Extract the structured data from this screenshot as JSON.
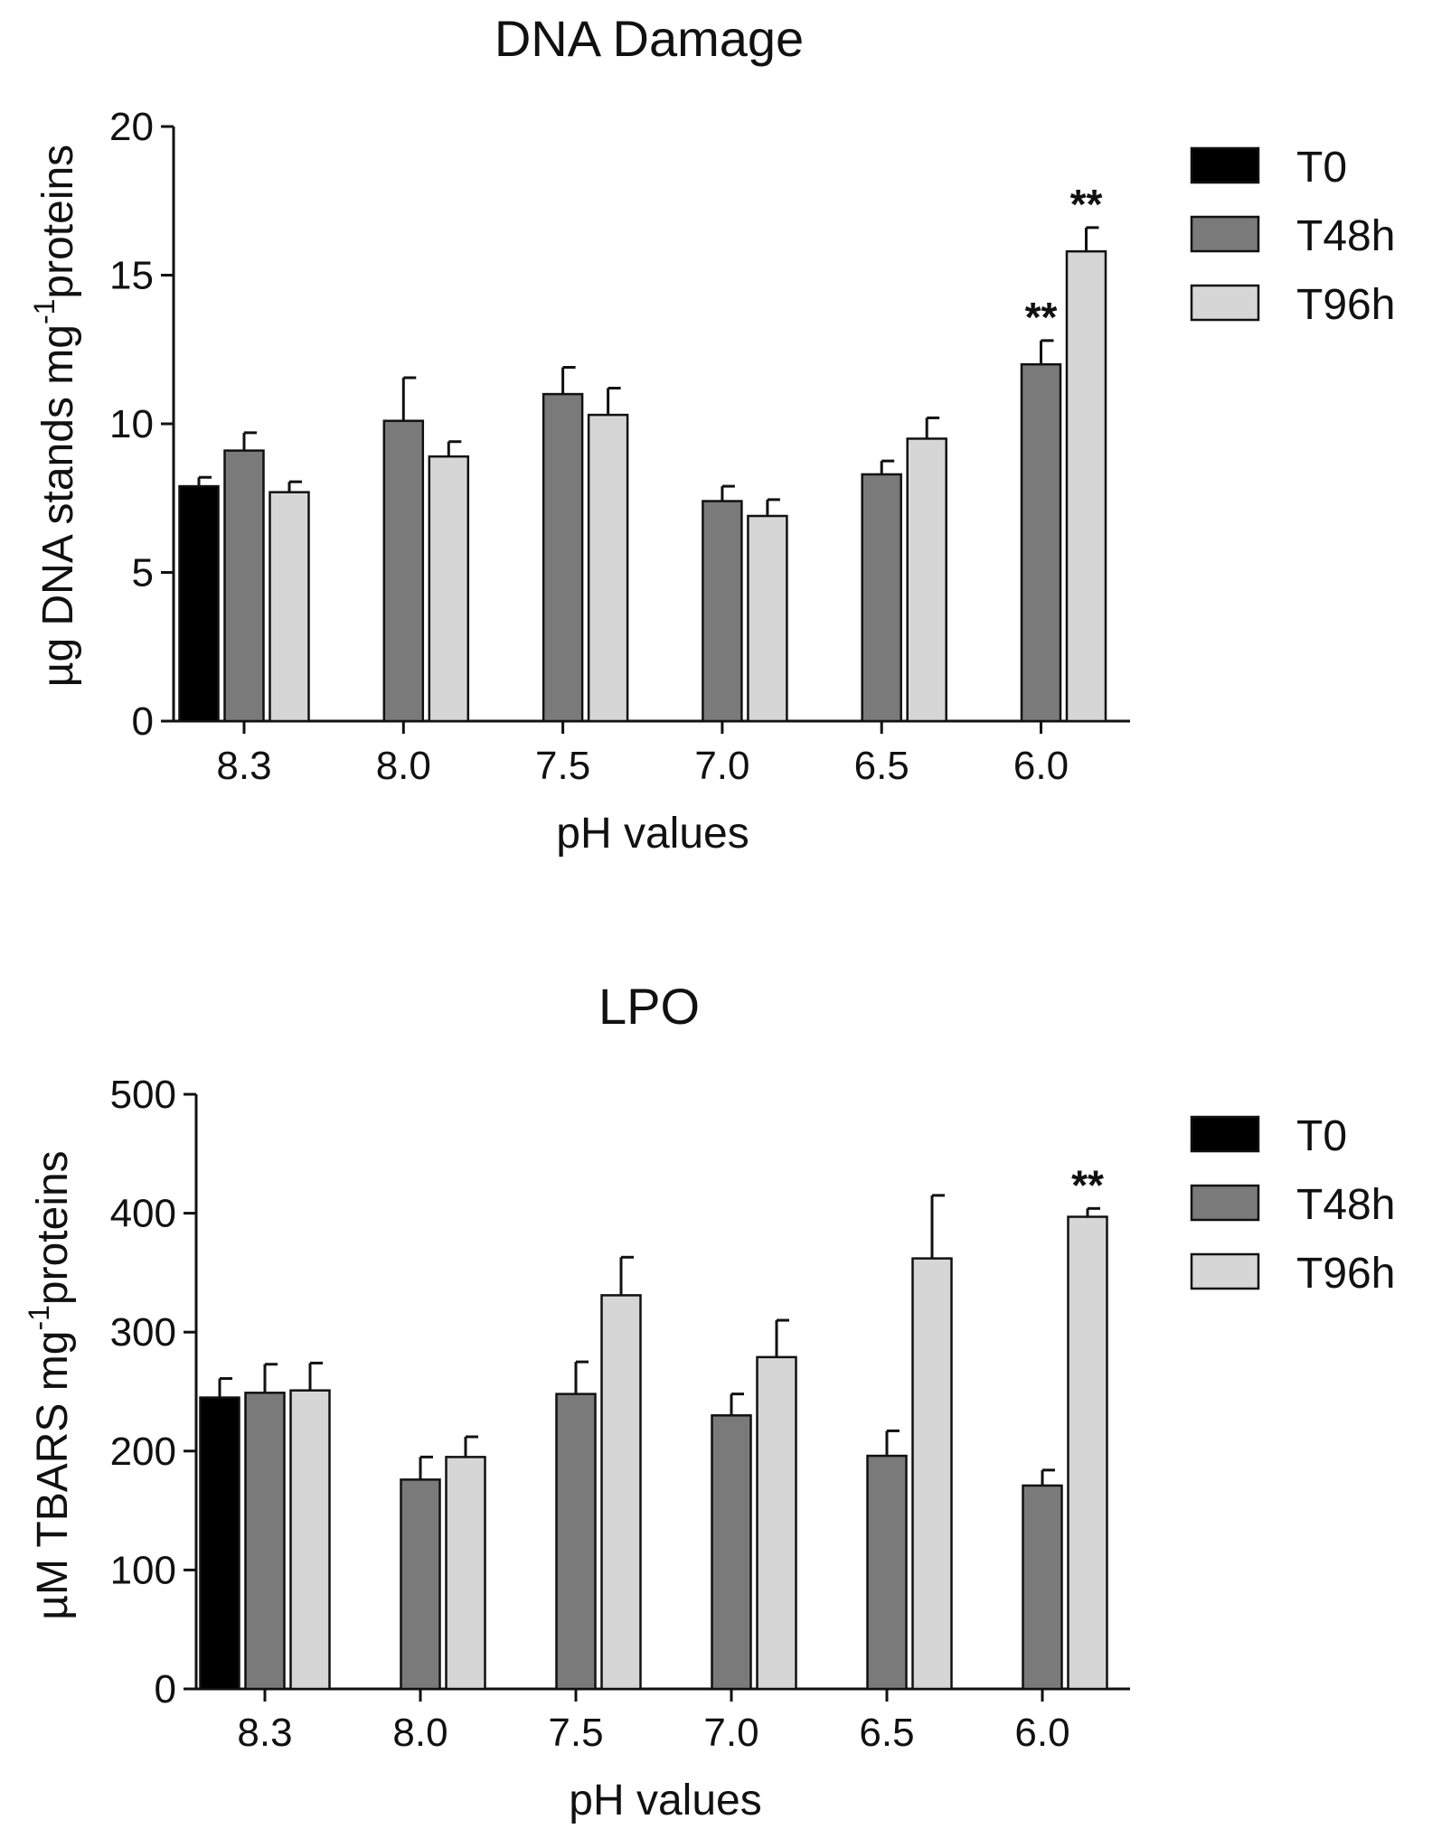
{
  "colors": {
    "T0": "#000000",
    "T48h": "#7a7a7a",
    "T96h": "#d6d6d6",
    "axis": "#111111"
  },
  "chart_data": [
    {
      "type": "bar",
      "title": "DNA Damage",
      "xlabel": "pH values",
      "ylabel": "µg DNA stands mg",
      "ylabel_sup": "-1",
      "ylabel_tail": "proteins",
      "categories": [
        "8.3",
        "8.0",
        "7.5",
        "7.0",
        "6.5",
        "6.0"
      ],
      "ylim": [
        0,
        20
      ],
      "yticks": [
        0,
        5,
        10,
        15,
        20
      ],
      "legend_position": "top-right",
      "series": [
        {
          "name": "T0",
          "values": [
            7.9,
            null,
            null,
            null,
            null,
            null
          ],
          "errors": [
            0.3,
            null,
            null,
            null,
            null,
            null
          ]
        },
        {
          "name": "T48h",
          "values": [
            9.1,
            10.1,
            11.0,
            7.4,
            8.3,
            12.0
          ],
          "errors": [
            0.6,
            1.45,
            0.9,
            0.5,
            0.45,
            0.8
          ]
        },
        {
          "name": "T96h",
          "values": [
            7.7,
            8.9,
            10.3,
            6.9,
            9.5,
            15.8
          ],
          "errors": [
            0.35,
            0.5,
            0.9,
            0.55,
            0.7,
            0.8
          ]
        }
      ],
      "annotations": [
        {
          "text": "**",
          "category": "6.0",
          "series": "T48h"
        },
        {
          "text": "**",
          "category": "6.0",
          "series": "T96h"
        }
      ]
    },
    {
      "type": "bar",
      "title": "LPO",
      "xlabel": "pH values",
      "ylabel": "µM TBARS mg",
      "ylabel_sup": "-1",
      "ylabel_tail": "proteins",
      "categories": [
        "8.3",
        "8.0",
        "7.5",
        "7.0",
        "6.5",
        "6.0"
      ],
      "ylim": [
        0,
        500
      ],
      "yticks": [
        0,
        100,
        200,
        300,
        400,
        500
      ],
      "legend_position": "top-right",
      "series": [
        {
          "name": "T0",
          "values": [
            245,
            null,
            null,
            null,
            null,
            null
          ],
          "errors": [
            16,
            null,
            null,
            null,
            null,
            null
          ]
        },
        {
          "name": "T48h",
          "values": [
            249,
            176,
            248,
            230,
            196,
            171
          ],
          "errors": [
            24,
            19,
            27,
            18,
            21,
            13
          ]
        },
        {
          "name": "T96h",
          "values": [
            251,
            195,
            331,
            279,
            362,
            397
          ],
          "errors": [
            23,
            17,
            32,
            31,
            53,
            7
          ]
        }
      ],
      "annotations": [
        {
          "text": "**",
          "category": "6.0",
          "series": "T96h"
        }
      ]
    }
  ]
}
